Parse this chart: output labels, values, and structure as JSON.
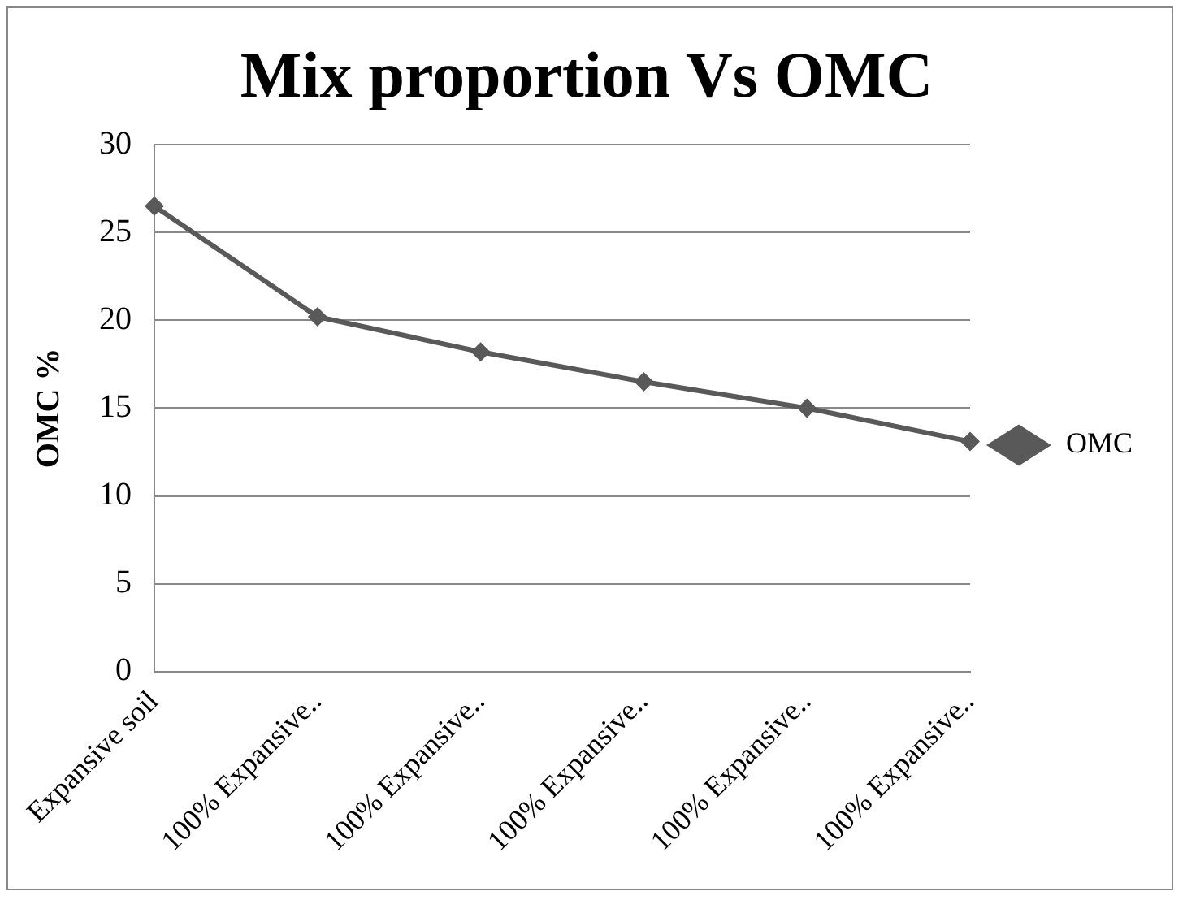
{
  "chart_data": {
    "type": "line",
    "title": "Mix proportion Vs OMC",
    "ylabel": "OMC %",
    "categories": [
      "Expansive soil",
      "100% Expansive..",
      "100% Expansive..",
      "100% Expansive..",
      "100% Expansive..",
      "100% Expansive.."
    ],
    "series": [
      {
        "name": "OMC",
        "color": "#595959",
        "values": [
          26.5,
          20.2,
          18.2,
          16.5,
          15.0,
          13.1
        ]
      }
    ],
    "ylim": [
      0,
      30
    ],
    "yticks": [
      0,
      5,
      10,
      15,
      20,
      25,
      30
    ],
    "grid": "y",
    "legend": "right",
    "marker": "diamond",
    "line_style": "solid"
  }
}
